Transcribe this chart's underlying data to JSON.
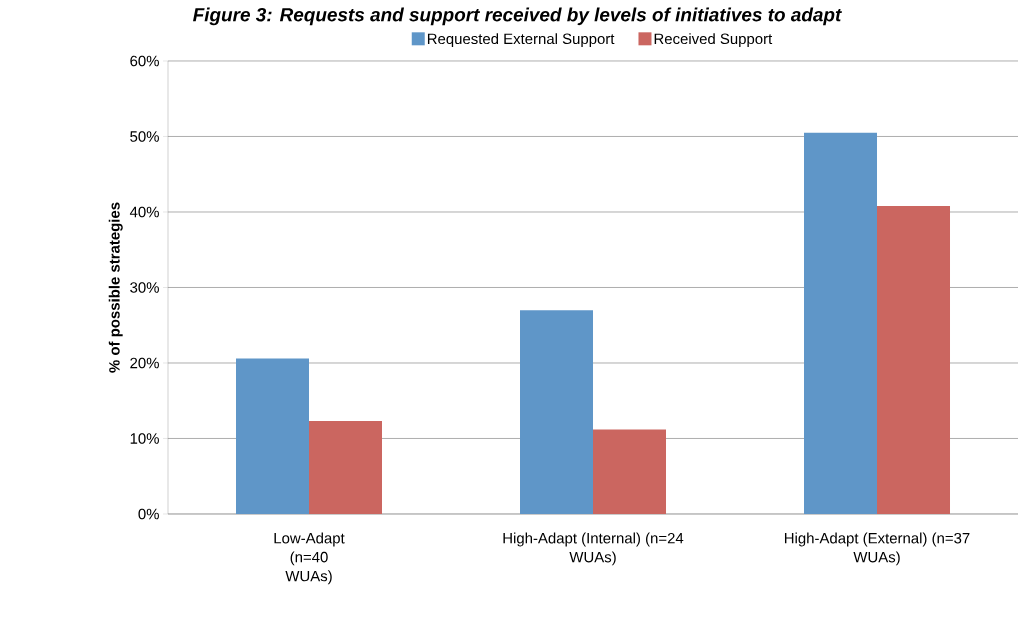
{
  "chart_data": {
    "type": "bar",
    "title": "Figure 3: Requests and support received by levels of initiatives to adapt",
    "ylabel": "% of possible strategies",
    "categories": [
      "Low-Adapt (n=40 WUAs)",
      "High-Adapt (Internal) (n=24 WUAs)",
      "High-Adapt (External) (n=37 WUAs)"
    ],
    "series": [
      {
        "name": "Requested External Support",
        "color": "#5f96c8",
        "values": [
          20.6,
          27.0,
          50.5
        ]
      },
      {
        "name": "Received Support",
        "color": "#cb6660",
        "values": [
          12.3,
          11.2,
          40.8
        ]
      }
    ],
    "ylim": [
      0,
      60
    ],
    "yticks": [
      {
        "value": 0,
        "label": "0%"
      },
      {
        "value": 10,
        "label": "10%"
      },
      {
        "value": 20,
        "label": "20%"
      },
      {
        "value": 30,
        "label": "30%"
      },
      {
        "value": 40,
        "label": "40%"
      },
      {
        "value": 50,
        "label": "50%"
      },
      {
        "value": 60,
        "label": "60%"
      }
    ],
    "grid": "y",
    "legend": "top"
  }
}
